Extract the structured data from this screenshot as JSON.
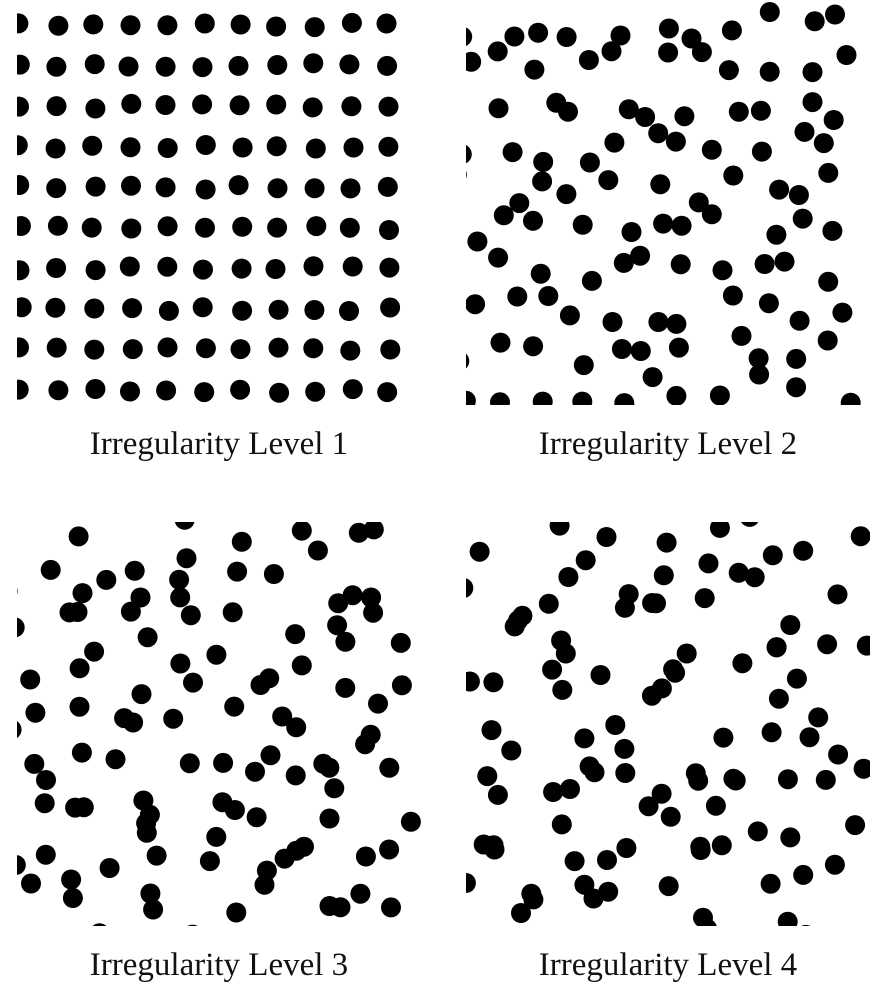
{
  "panels": [
    {
      "caption": "Irregularity Level 1",
      "irregularity": 1,
      "dot_color": "#000000"
    },
    {
      "caption": "Irregularity Level 2",
      "irregularity": 2,
      "dot_color": "#000000"
    },
    {
      "caption": "Irregularity Level 3",
      "irregularity": 3,
      "dot_color": "#000000"
    },
    {
      "caption": "Irregularity Level 4",
      "irregularity": 4,
      "dot_color": "#000000"
    }
  ]
}
